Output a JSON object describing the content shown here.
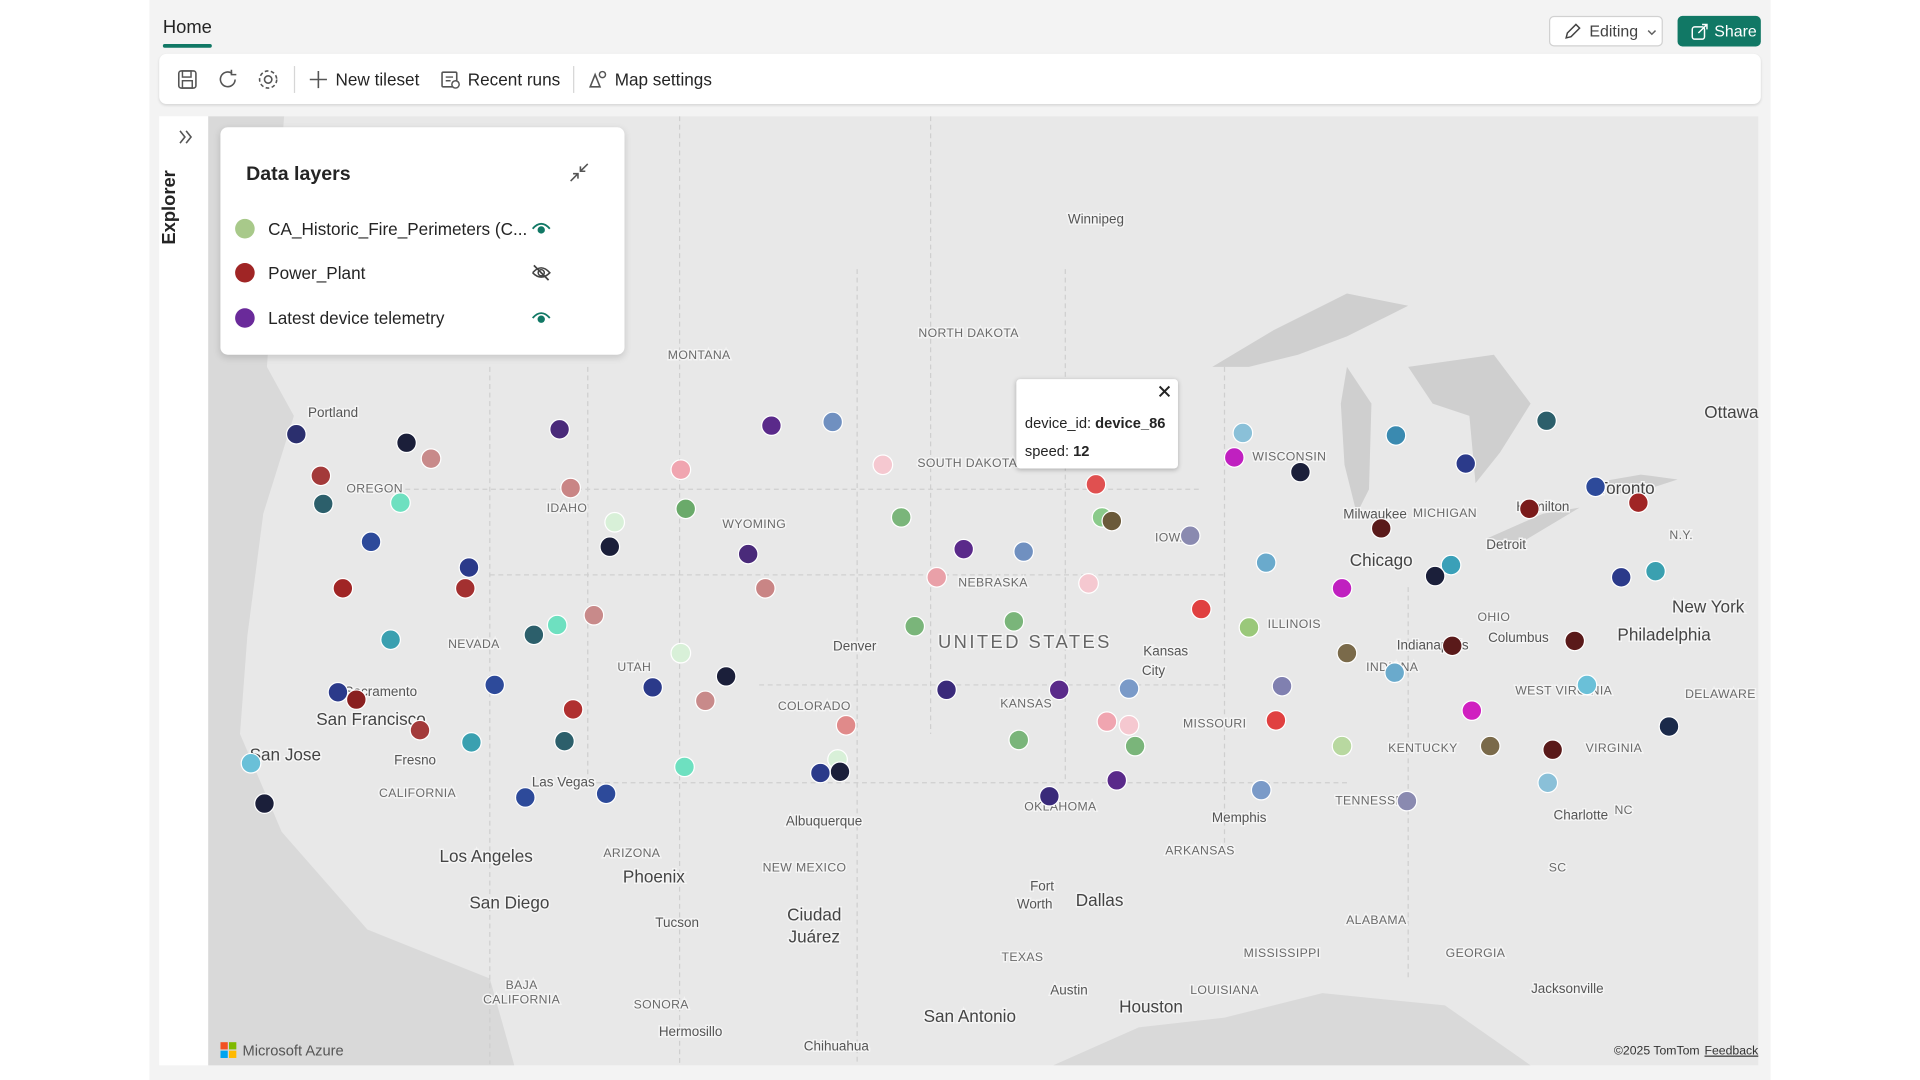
{
  "header": {
    "tab": "Home",
    "editing": "Editing",
    "share": "Share"
  },
  "toolbar": {
    "items": [
      "New tileset",
      "Recent runs",
      "Map settings"
    ]
  },
  "explorer": {
    "label": "Explorer"
  },
  "data_layers": {
    "title": "Data layers",
    "layers": [
      "CA_Historic_Fire_Perimeters (C...",
      "Power_Plant",
      "Latest device telemetry"
    ]
  },
  "tooltip": {
    "device_id_label": "device_id:",
    "device_id": "device_86",
    "speed_label": "speed:",
    "speed": 12
  },
  "map": {
    "labels": [
      "Winnipeg",
      "NORTH DAKOTA",
      "MONTANA",
      "SOUTH DAKOTA",
      "Portland",
      "OREGON",
      "IDAHO",
      "WYOMING",
      "WISCONSIN",
      "Ottawa",
      "Toronto",
      "Hamilton",
      "Milwaukee",
      "MICHIGAN",
      "Detroit",
      "IOWA",
      "Chicago",
      "N.Y.",
      "NEBRASKA",
      "OHIO",
      "New York",
      "NEVADA",
      "Denver",
      "UNITED STATES",
      "ILLINOIS",
      "Kansas",
      "City",
      "Columbus",
      "Philadelphia",
      "Indianapolis",
      "INDIANA",
      "UTAH",
      "Sacramento",
      "WEST VIRGINIA",
      "DELAWARE",
      "San Francisco",
      "COLORADO",
      "KANSAS",
      "MISSOURI",
      "San Jose",
      "Fresno",
      "KENTUCKY",
      "VIRGINIA",
      "Las Vegas",
      "CALIFORNIA",
      "OKLAHOMA",
      "TENNESSEE",
      "Memphis",
      "Charlotte",
      "NC",
      "Albuquerque",
      "ARIZONA",
      "ARKANSAS",
      "Los Angeles",
      "NEW MEXICO",
      "SC",
      "Phoenix",
      "Fort",
      "Worth",
      "Dallas",
      "San Diego",
      "Ciudad",
      "Juárez",
      "ALABAMA",
      "Tucson",
      "MISSISSIPPI",
      "TEXAS",
      "GEORGIA",
      "BAJA",
      "CALIFORNIA",
      "Austin",
      "LOUISIANA",
      "Jacksonville",
      "Houston",
      "SONORA",
      "San Antonio",
      "Hermosillo",
      "Chihuahua"
    ],
    "attribution": "Microsoft Azure",
    "copyright": "©2025 TomTom",
    "feedback": "Feedback"
  }
}
